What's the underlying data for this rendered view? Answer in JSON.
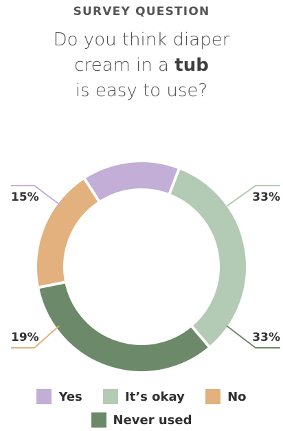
{
  "header": {
    "eyebrow": "SURVEY QUESTION",
    "title_line1": "Do you think diaper",
    "title_line2_pre": "cream in a ",
    "title_line2_bold": "tub",
    "title_line3": "is easy to use?"
  },
  "chart_data": {
    "type": "pie",
    "donut": true,
    "slices": [
      {
        "label": "Yes",
        "value": 15,
        "display": "15%",
        "color": "#c2aed6"
      },
      {
        "label": "It’s okay",
        "value": 33,
        "display": "33%",
        "color": "#b3cbb4"
      },
      {
        "label": "Never used",
        "value": 33,
        "display": "33%",
        "color": "#6c8a6a"
      },
      {
        "label": "No",
        "value": 19,
        "display": "19%",
        "color": "#e2b17d"
      }
    ],
    "legend": [
      "Yes",
      "It’s okay",
      "No",
      "Never used"
    ],
    "legend_placement": "bottom"
  }
}
